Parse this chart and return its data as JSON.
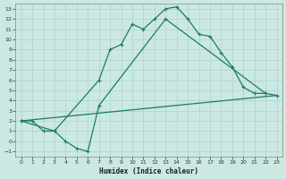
{
  "xlabel": "Humidex (Indice chaleur)",
  "xlim": [
    -0.5,
    23.5
  ],
  "ylim": [
    -1.5,
    13.5
  ],
  "xticks": [
    0,
    1,
    2,
    3,
    4,
    5,
    6,
    7,
    8,
    9,
    10,
    11,
    12,
    13,
    14,
    15,
    16,
    17,
    18,
    19,
    20,
    21,
    22,
    23
  ],
  "yticks": [
    -1,
    0,
    1,
    2,
    3,
    4,
    5,
    6,
    7,
    8,
    9,
    10,
    11,
    12,
    13
  ],
  "bg_color": "#cce8e3",
  "grid_color": "#b0d8d0",
  "line_color": "#1a7a6e",
  "curve1_x": [
    0,
    1,
    2,
    3,
    7,
    8,
    9,
    10,
    11,
    12,
    13,
    14,
    15,
    16,
    17,
    18,
    19,
    20,
    21,
    22
  ],
  "curve1_y": [
    2,
    2,
    1,
    1,
    6,
    9,
    9.5,
    11.5,
    11.0,
    12.0,
    13.0,
    13.2,
    12.0,
    10.5,
    10.3,
    8.7,
    7.3,
    5.3,
    4.7,
    4.7
  ],
  "curve2_x": [
    0,
    3,
    4,
    5,
    6,
    7,
    13,
    22,
    23
  ],
  "curve2_y": [
    2,
    1,
    0,
    -0.7,
    -1.0,
    3.5,
    12.0,
    4.7,
    4.5
  ],
  "curve3_x": [
    0,
    23
  ],
  "curve3_y": [
    2,
    4.5
  ]
}
